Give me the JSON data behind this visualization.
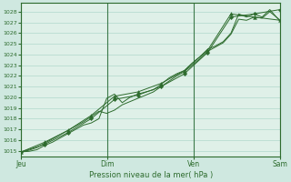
{
  "background_color": "#cfe8e0",
  "plot_bg_color": "#dff0e8",
  "grid_color": "#b0d8cc",
  "line_color": "#2d6b2d",
  "xlabel": "Pression niveau de la mer( hPa )",
  "ylim": [
    1014.5,
    1028.8
  ],
  "yticks": [
    1015,
    1016,
    1017,
    1018,
    1019,
    1020,
    1021,
    1022,
    1023,
    1024,
    1025,
    1026,
    1027,
    1028
  ],
  "day_labels": [
    "Jeu",
    "Dim",
    "Ven",
    "Sam"
  ],
  "day_positions": [
    0.0,
    0.333,
    0.667,
    1.0
  ],
  "line1_x": [
    0.0,
    0.03,
    0.06,
    0.09,
    0.12,
    0.15,
    0.18,
    0.21,
    0.24,
    0.27,
    0.3,
    0.33,
    0.36,
    0.39,
    0.42,
    0.45,
    0.48,
    0.51,
    0.54,
    0.57,
    0.6,
    0.63,
    0.66,
    0.69,
    0.72,
    0.75,
    0.78,
    0.81,
    0.84,
    0.87,
    0.9,
    0.93,
    0.96,
    1.0
  ],
  "line1_y": [
    1014.9,
    1014.95,
    1015.1,
    1015.5,
    1015.8,
    1016.2,
    1016.6,
    1017.0,
    1017.4,
    1017.6,
    1018.0,
    1019.9,
    1020.3,
    1019.5,
    1020.0,
    1020.3,
    1020.5,
    1020.7,
    1021.2,
    1021.8,
    1022.2,
    1022.5,
    1023.2,
    1023.8,
    1024.5,
    1024.8,
    1025.2,
    1026.0,
    1027.8,
    1027.5,
    1027.8,
    1027.5,
    1028.2,
    1027.1
  ],
  "line2_x": [
    0.0,
    0.03,
    0.06,
    0.09,
    0.12,
    0.15,
    0.18,
    0.21,
    0.24,
    0.27,
    0.3,
    0.33,
    0.36,
    0.39,
    0.42,
    0.45,
    0.48,
    0.51,
    0.54,
    0.57,
    0.6,
    0.63,
    0.66,
    0.69,
    0.72,
    0.75,
    0.78,
    0.81,
    0.84,
    0.87,
    0.9,
    0.93,
    0.96,
    1.0
  ],
  "line2_y": [
    1014.9,
    1015.05,
    1015.3,
    1015.7,
    1016.1,
    1016.5,
    1016.9,
    1017.3,
    1017.7,
    1018.2,
    1018.7,
    1018.5,
    1018.8,
    1019.3,
    1019.6,
    1019.9,
    1020.2,
    1020.5,
    1021.0,
    1021.5,
    1022.0,
    1022.4,
    1023.0,
    1023.6,
    1024.3,
    1024.7,
    1025.1,
    1025.9,
    1027.3,
    1027.2,
    1027.5,
    1027.4,
    1028.0,
    1027.2
  ],
  "line3_x": [
    0.0,
    0.09,
    0.18,
    0.27,
    0.36,
    0.45,
    0.54,
    0.63,
    0.72,
    0.81,
    0.9,
    1.0
  ],
  "line3_y": [
    1014.9,
    1015.8,
    1016.9,
    1018.3,
    1020.1,
    1020.5,
    1021.3,
    1022.5,
    1024.4,
    1027.8,
    1027.5,
    1027.2
  ],
  "line4_x": [
    0.0,
    0.09,
    0.18,
    0.27,
    0.36,
    0.45,
    0.54,
    0.63,
    0.72,
    0.81,
    0.9,
    1.0
  ],
  "line4_y": [
    1014.9,
    1015.6,
    1016.7,
    1018.0,
    1019.8,
    1020.2,
    1021.0,
    1022.2,
    1024.2,
    1027.5,
    1027.8,
    1028.2
  ]
}
